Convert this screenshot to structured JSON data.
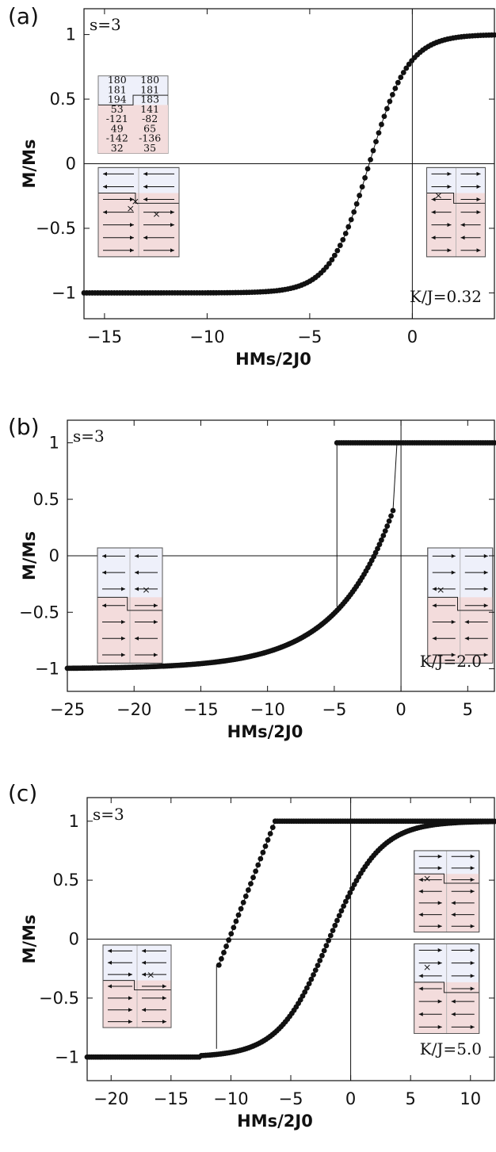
{
  "chart_data": [
    {
      "panel_label": "(a)",
      "type": "scatter",
      "xlabel": "HMs/2J0",
      "ylabel": "M/Ms",
      "xlim": [
        -16,
        4
      ],
      "ylim": [
        -1.2,
        1.2
      ],
      "xticks": [
        "−15",
        "−10",
        "−5",
        "0"
      ],
      "xtick_values": [
        -15,
        -10,
        -5,
        0
      ],
      "yticks": [
        "−1",
        "−0.5",
        "0",
        "0.5",
        "1"
      ],
      "ytick_values": [
        -1,
        -0.5,
        0,
        0.5,
        1
      ],
      "annotation_s": "s=3",
      "annotation_k": "K/J=0.32",
      "hysteresis": false,
      "curve": {
        "kind": "sigmoid",
        "x_start": -16,
        "x_end": 4,
        "center": -2.1,
        "width": 1.9,
        "points": 150
      },
      "table": [
        [
          "180",
          "180"
        ],
        [
          "181",
          "181"
        ],
        [
          "194",
          "183"
        ],
        [
          "53",
          "141"
        ],
        [
          "-121",
          "-82"
        ],
        [
          "49",
          "65"
        ],
        [
          "-142",
          "-136"
        ],
        [
          "32",
          "35"
        ]
      ]
    },
    {
      "panel_label": "(b)",
      "type": "scatter",
      "xlabel": "HMs/2J0",
      "ylabel": "M/Ms",
      "xlim": [
        -25,
        7
      ],
      "ylim": [
        -1.2,
        1.2
      ],
      "xticks": [
        "−25",
        "−20",
        "−15",
        "−10",
        "−5",
        "0",
        "5"
      ],
      "xtick_values": [
        -25,
        -20,
        -15,
        -10,
        -5,
        0,
        5
      ],
      "yticks": [
        "−1",
        "−0.5",
        "0",
        "0.5",
        "1"
      ],
      "ytick_values": [
        -1,
        -0.5,
        0,
        0.5,
        1
      ],
      "annotation_s": "s=3",
      "annotation_k": "K/J=2.0",
      "hysteresis": true,
      "lower_branch": {
        "x_start": -25,
        "x_end": -0.6,
        "center": -2.6,
        "width": 3.5,
        "points": 170
      },
      "upper_branch": {
        "x_start": -4.8,
        "x_end": 7,
        "value": 1.0,
        "points": 70
      },
      "switch_down_x": -4.8,
      "switch_up_x": -0.6
    },
    {
      "panel_label": "(c)",
      "type": "scatter",
      "xlabel": "HMs/2J0",
      "ylabel": "M/Ms",
      "xlim": [
        -22,
        12
      ],
      "ylim": [
        -1.2,
        1.2
      ],
      "xticks": [
        "−20",
        "−15",
        "−10",
        "−5",
        "0",
        "5",
        "10"
      ],
      "xtick_values": [
        -20,
        -15,
        -10,
        -5,
        0,
        5,
        10
      ],
      "yticks": [
        "−1",
        "−0.5",
        "0",
        "0.5",
        "1"
      ],
      "ytick_values": [
        -1,
        -0.5,
        0,
        0.5,
        1
      ],
      "annotation_s": "s=3",
      "annotation_k": "K/J=5.0",
      "hysteresis": true,
      "smooth_branch": {
        "x_start": -22,
        "x_end": 12,
        "center": -1.8,
        "width": 4.2,
        "points": 190
      },
      "upper_linear": {
        "x_start": -11.0,
        "x_end": -6.3,
        "y_start": -0.22,
        "y_end": 1.0,
        "points": 24
      },
      "upper_flat": {
        "x_start": -6.3,
        "x_end": 12,
        "value": 1.0,
        "points": 95
      },
      "switch_down_x": -11.2
    }
  ]
}
